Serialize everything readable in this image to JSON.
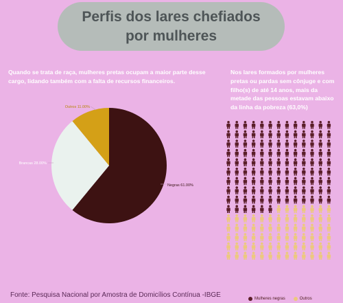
{
  "title": "Perfis dos lares chefiados por mulheres",
  "left_text": "Quando se trata de raça, mulheres pretas ocupam a maior parte desse cargo, lidando também com a falta de recursos financeiros.",
  "right_text": "Nos lares formados por mulheres pretas ou pardas sem cônjuge e com filho(s) de até 14 anos, mais da metade das pessoas estavam abaixo da linha da pobreza (63,0%)",
  "source": "Fonte: Pesquisa Nacional por Amostra de Domicílios Contínua -IBGE",
  "chart_data": [
    {
      "type": "pie",
      "slices": [
        {
          "label": "Negras",
          "value": 61.0,
          "text": "Negras 61.00%",
          "color": "#3d1212"
        },
        {
          "label": "Brancas",
          "value": 28.0,
          "text": "Brancas 28.00%",
          "color": "#eaf2ee"
        },
        {
          "label": "Outros",
          "value": 11.0,
          "text": "Outros 11.00%",
          "color": "#d4a017"
        }
      ]
    },
    {
      "type": "pictogram",
      "total": 100,
      "series": [
        {
          "name": "Mulheres negras",
          "value": 63,
          "color": "#5a1e28"
        },
        {
          "name": "Outros",
          "value": 37,
          "color": "#ecc97e"
        }
      ]
    }
  ]
}
